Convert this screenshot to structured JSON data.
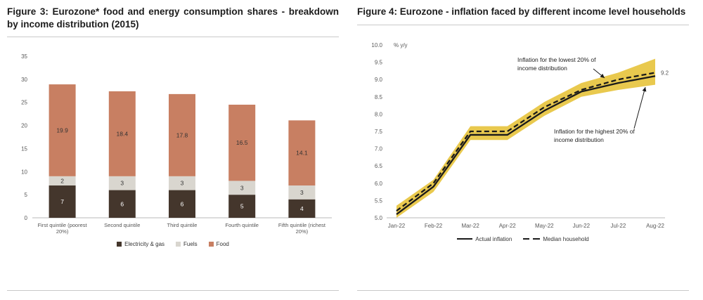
{
  "fig3": {
    "title": "Figure 3: Eurozone* food and energy consumption shares - breakdown by income distribution (2015)",
    "chart_data": {
      "type": "bar",
      "stacked": true,
      "categories": [
        [
          "First quintile (poorest",
          "20%)"
        ],
        [
          "Second quintile"
        ],
        [
          "Third quintile"
        ],
        [
          "Fourth quintile"
        ],
        [
          "Fifth quintile (richest",
          "20%)"
        ]
      ],
      "series": [
        {
          "name": "Electricity & gas",
          "color": "#44362c",
          "label_color": "#ffffff",
          "values": [
            7,
            6,
            6,
            5,
            4
          ]
        },
        {
          "name": "Fuels",
          "color": "#d9d6cf",
          "label_color": "#333333",
          "values": [
            2,
            3,
            3,
            3,
            3
          ]
        },
        {
          "name": "Food",
          "color": "#c87f62",
          "label_color": "#333333",
          "values": [
            19.9,
            18.4,
            17.8,
            16.5,
            14.1
          ]
        }
      ],
      "ylim": [
        0,
        35
      ],
      "ytick_step": 5,
      "legend_position": "bottom"
    }
  },
  "fig4": {
    "title": "Figure 4: Eurozone - inflation faced by different income level households",
    "chart_data": {
      "type": "line",
      "x": [
        "Jan-22",
        "Feb-22",
        "Mar-22",
        "Apr-22",
        "May-22",
        "Jun-22",
        "Jul-22",
        "Aug-22"
      ],
      "ylabel": "% y/y",
      "ylim": [
        5.0,
        10.0
      ],
      "ytick_step": 0.5,
      "band": {
        "color": "#e9c94e",
        "lower": [
          5.0,
          5.75,
          7.25,
          7.25,
          7.95,
          8.5,
          8.7,
          8.85
        ],
        "upper": [
          5.35,
          6.1,
          7.65,
          7.65,
          8.35,
          8.9,
          9.2,
          9.6
        ]
      },
      "series": [
        {
          "name": "Actual inflation",
          "style": "solid",
          "color": "#1a1a1a",
          "values": [
            5.1,
            5.9,
            7.4,
            7.4,
            8.1,
            8.65,
            8.9,
            9.1
          ]
        },
        {
          "name": "Median household",
          "style": "dashed",
          "color": "#1a1a1a",
          "values": [
            5.2,
            6.0,
            7.5,
            7.5,
            8.2,
            8.7,
            9.0,
            9.2
          ]
        }
      ],
      "end_label": "9.2",
      "annotations": [
        {
          "text": "Inflation for the lowest 20% of\nincome distribution"
        },
        {
          "text": "Inflation for the highest 20% of\nincome distribution"
        }
      ],
      "legend_position": "bottom"
    }
  }
}
